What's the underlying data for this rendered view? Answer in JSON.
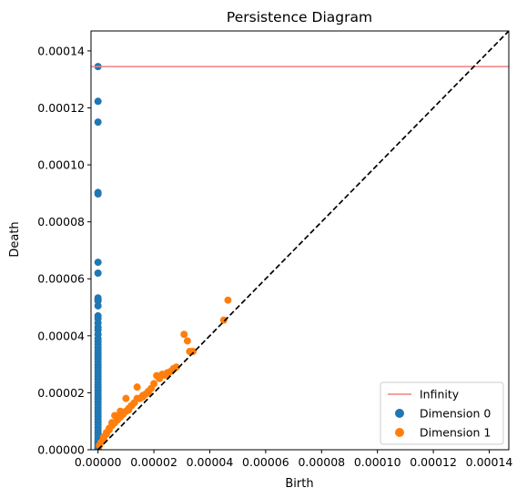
{
  "chart_data": {
    "type": "scatter",
    "title": "Persistence Diagram",
    "xlabel": "Birth",
    "ylabel": "Death",
    "xlim": [
      -2.5e-06,
      0.000147
    ],
    "ylim": [
      0,
      0.000147
    ],
    "x_ticks": [
      "0.00000",
      "0.00002",
      "0.00004",
      "0.00006",
      "0.00008",
      "0.00010",
      "0.00012",
      "0.00014"
    ],
    "y_ticks": [
      "0.00000",
      "0.00002",
      "0.00004",
      "0.00006",
      "0.00008",
      "0.00010",
      "0.00012",
      "0.00014"
    ],
    "grid": false,
    "legend_position": "lower-right",
    "infinity_level": 0.0001345,
    "diagonal": true,
    "colors": {
      "dimension0": "#1f77b4",
      "dimension1": "#ff7f0e",
      "infinity": "#f08080",
      "diagonal": "#000000"
    },
    "legend": [
      "Infinity",
      "Dimension 0",
      "Dimension 1"
    ],
    "series": [
      {
        "name": "Dimension 0",
        "x": [
          0,
          0,
          0,
          0,
          0,
          0,
          0,
          0,
          0,
          0,
          0,
          0,
          0,
          0,
          0,
          0,
          0,
          0,
          0,
          0,
          0,
          0,
          0,
          0,
          0,
          0,
          0,
          0,
          0,
          0,
          0,
          0,
          0,
          0,
          0,
          0,
          0,
          0,
          0,
          0,
          0,
          0,
          0,
          0,
          0,
          0,
          0,
          0,
          0,
          0,
          0,
          0,
          0,
          0,
          0,
          0,
          0,
          0,
          0,
          0,
          0
        ],
        "y": [
          0.0001345,
          0.0001223,
          0.000115,
          9.03e-05,
          8.98e-05,
          6.58e-05,
          6.2e-05,
          5.33e-05,
          5.27e-05,
          5.22e-05,
          5.05e-05,
          4.7e-05,
          4.6e-05,
          4.45e-05,
          4.3e-05,
          4.2e-05,
          4.05e-05,
          3.9e-05,
          3.8e-05,
          3.7e-05,
          3.58e-05,
          3.48e-05,
          3.38e-05,
          3.28e-05,
          3.18e-05,
          3.08e-05,
          2.98e-05,
          2.88e-05,
          2.78e-05,
          2.68e-05,
          2.58e-05,
          2.48e-05,
          2.38e-05,
          2.28e-05,
          2.18e-05,
          2.08e-05,
          1.98e-05,
          1.88e-05,
          1.78e-05,
          1.68e-05,
          1.58e-05,
          1.48e-05,
          1.38e-05,
          1.28e-05,
          1.18e-05,
          1.08e-05,
          9.8e-06,
          8.8e-06,
          7.8e-06,
          6.8e-06,
          5.8e-06,
          4.8e-06,
          3.8e-06,
          3e-06,
          2.4e-06,
          1.8e-06,
          1.3e-06,
          9e-07,
          5e-07,
          3e-07,
          1e-07
        ]
      },
      {
        "name": "Dimension 1",
        "x": [
          4.65e-05,
          4.5e-05,
          3.08e-05,
          3.2e-05,
          3.28e-05,
          3.4e-05,
          2.7e-05,
          2.8e-05,
          2.48e-05,
          2.3e-05,
          2.4e-05,
          2.1e-05,
          2.2e-05,
          2e-05,
          1.9e-05,
          1.8e-05,
          1.7e-05,
          1.6e-05,
          1.5e-05,
          1.4e-05,
          1.3e-05,
          1.2e-05,
          1.1e-05,
          1e-05,
          9e-06,
          8e-06,
          7e-06,
          6e-06,
          5e-06,
          4e-06,
          3e-06,
          2e-06,
          1e-06,
          5e-07,
          1.4e-05,
          1e-05,
          8e-06,
          6e-06,
          1.2e-05,
          5e-06,
          4e-06,
          3e-06,
          2e-06,
          7e-06,
          9e-06,
          1.1e-05,
          1.6e-05,
          1.8e-05,
          2.5e-05,
          2.6e-05
        ],
        "y": [
          5.25e-05,
          4.55e-05,
          4.05e-05,
          3.82e-05,
          3.45e-05,
          3.45e-05,
          2.85e-05,
          2.9e-05,
          2.7e-05,
          2.65e-05,
          2.62e-05,
          2.6e-05,
          2.5e-05,
          2.32e-05,
          2.15e-05,
          2.05e-05,
          1.95e-05,
          1.85e-05,
          1.8e-05,
          1.8e-05,
          1.65e-05,
          1.55e-05,
          1.45e-05,
          1.35e-05,
          1.25e-05,
          1.15e-05,
          1.05e-05,
          9.5e-06,
          8.5e-06,
          7e-06,
          5.5e-06,
          4e-06,
          2.5e-06,
          1.5e-06,
          2.2e-05,
          1.8e-05,
          1.35e-05,
          1.2e-05,
          1.55e-05,
          9.5e-06,
          7.5e-06,
          6e-06,
          4.5e-06,
          1.1e-05,
          1.3e-05,
          1.4e-05,
          1.9e-05,
          2e-05,
          2.7e-05,
          2.75e-05
        ]
      }
    ]
  }
}
